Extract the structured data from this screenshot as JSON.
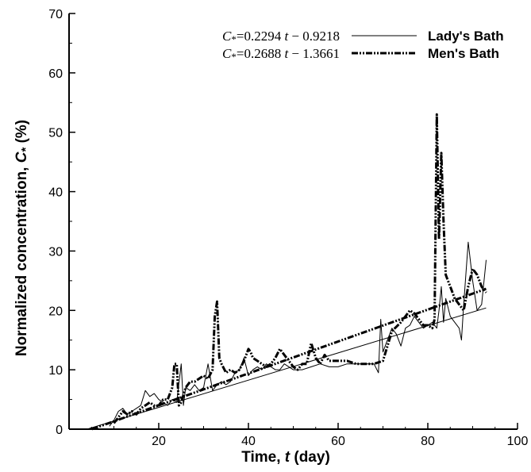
{
  "chart_data": {
    "type": "line",
    "xlabel_prefix": "Time, ",
    "xlabel_var": "t",
    "xlabel_suffix": " (day)",
    "ylabel_prefix": "Normalized concentration, ",
    "ylabel_var": "C",
    "ylabel_sub": "*",
    "ylabel_suffix": " (%)",
    "xlim": [
      0,
      100
    ],
    "ylim": [
      0,
      70
    ],
    "xticks": [
      20,
      40,
      60,
      80,
      100
    ],
    "yticks": [
      0,
      10,
      20,
      30,
      40,
      50,
      60,
      70
    ],
    "grid": false,
    "legend_position": "top-right",
    "series": [
      {
        "name": "Lady's Bath",
        "line_style": "solid",
        "color": "#000000",
        "x": [
          9,
          10,
          11,
          12,
          13,
          14,
          15,
          16,
          17,
          18,
          19,
          20,
          21,
          22,
          23,
          24,
          25,
          25.5,
          26,
          27,
          28,
          29,
          30,
          31,
          32,
          33,
          34,
          35,
          36,
          37,
          38,
          39,
          40,
          41,
          42,
          43,
          44,
          45,
          46,
          47,
          48,
          49,
          50,
          52,
          54,
          56,
          58,
          60,
          62,
          64,
          66,
          68,
          69,
          69.5,
          70,
          71,
          72,
          73,
          74,
          75,
          76,
          77,
          78,
          79,
          80,
          81,
          82,
          82.5,
          83,
          83.5,
          84,
          85,
          86,
          87,
          87.5,
          88,
          89,
          90,
          91,
          92,
          93
        ],
        "y": [
          0.5,
          1.5,
          3,
          3.5,
          2.5,
          3,
          3.5,
          4,
          6.5,
          5.5,
          6,
          5,
          4.5,
          4,
          5,
          4.5,
          11,
          4,
          7,
          6.5,
          7.5,
          6.5,
          7,
          11,
          6.5,
          7.5,
          8,
          7.5,
          8,
          9.5,
          10,
          12,
          9,
          10,
          10.5,
          10,
          11,
          10.5,
          10,
          10,
          11,
          10.5,
          10,
          10,
          10.5,
          11,
          10.5,
          10.5,
          11,
          11,
          11,
          11,
          9.5,
          18.5,
          13,
          15,
          17,
          16,
          14,
          17,
          17.5,
          19,
          18,
          17,
          17.5,
          18,
          17,
          20,
          24,
          18,
          22,
          19,
          18,
          17,
          15,
          21,
          31.5,
          25,
          20,
          21,
          28.5
        ],
        "fit_equation_coef": "0.2294",
        "fit_equation_const": "0.9218",
        "fit_slope": 0.2294,
        "fit_intercept": -0.9218
      },
      {
        "name": "Men's Bath",
        "line_style": "dash-dot-dot",
        "color": "#000000",
        "x": [
          10,
          11,
          12,
          13,
          14,
          15,
          16,
          17,
          18,
          19,
          20,
          21,
          22,
          23,
          23.5,
          24,
          24.5,
          25,
          26,
          27,
          28,
          29,
          30,
          31,
          32,
          32.5,
          33,
          33.5,
          34,
          35,
          36,
          37,
          38,
          39,
          40,
          40.5,
          41,
          42,
          43,
          44,
          45,
          46,
          47,
          48,
          49,
          50,
          51,
          52,
          53,
          54,
          55,
          56,
          57,
          58,
          60,
          62,
          64,
          66,
          68,
          70,
          72,
          74,
          75,
          76,
          77,
          78,
          79,
          80,
          81,
          81.5,
          82,
          82.5,
          83,
          83.5,
          84,
          84.5,
          85,
          86,
          87,
          88,
          89,
          90,
          91,
          92,
          93
        ],
        "y": [
          1,
          2,
          3,
          2.5,
          3,
          2.5,
          3.5,
          4,
          4.5,
          4,
          4,
          5,
          5,
          7,
          11,
          11,
          4,
          4.5,
          7,
          8,
          8,
          8.5,
          9,
          8.5,
          10,
          19,
          21.5,
          12,
          11,
          9.5,
          10,
          9.5,
          10,
          11.5,
          13.5,
          13,
          12,
          11.5,
          11,
          10.5,
          11,
          12,
          13.5,
          12.5,
          11.5,
          10.5,
          10,
          11,
          11,
          14.5,
          12,
          11,
          12.5,
          11.5,
          11.5,
          11.5,
          11,
          11,
          11,
          11.5,
          16.5,
          18,
          19,
          20,
          19.5,
          18.5,
          17.5,
          17.5,
          17,
          18.5,
          53,
          32,
          46.5,
          35,
          26,
          25,
          24,
          22,
          21,
          20,
          24,
          27,
          26,
          24,
          23
        ],
        "fit_equation_coef": "0.2688",
        "fit_equation_const": "1.3661",
        "fit_slope": 0.2688,
        "fit_intercept": -1.3661
      }
    ]
  }
}
